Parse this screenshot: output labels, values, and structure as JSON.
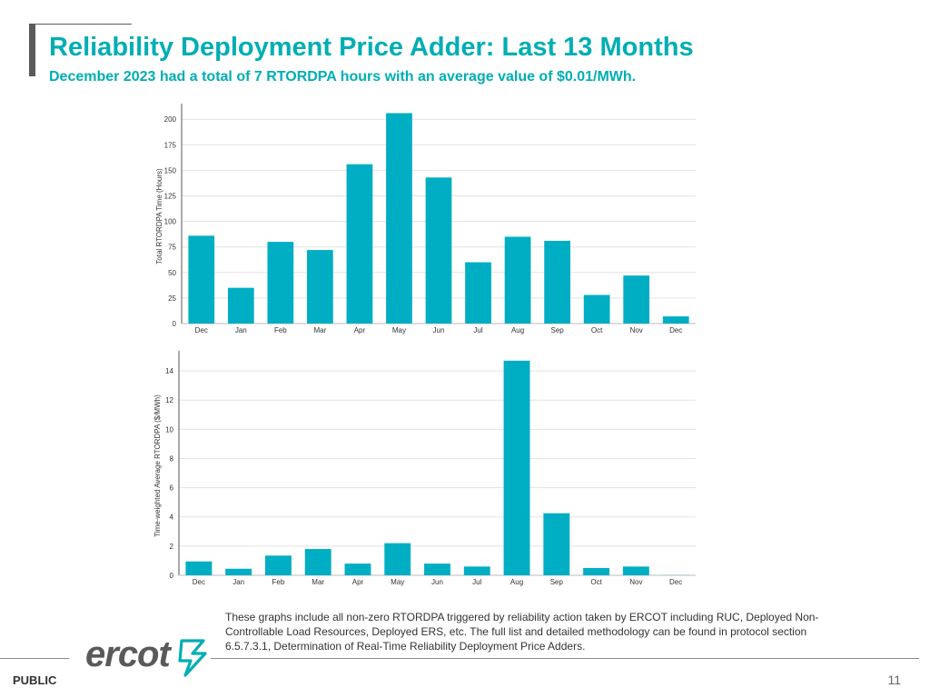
{
  "header": {
    "title": "Reliability Deployment Price Adder: Last 13 Months",
    "subtitle": "December 2023 had a total of 7 RTORDPA hours with an average value of $0.01/MWh."
  },
  "colors": {
    "accent": "#00aeb3",
    "bar": "#00aec3",
    "grid": "#e3e3e3"
  },
  "chart_data": [
    {
      "type": "bar",
      "categories": [
        "Dec",
        "Jan",
        "Feb",
        "Mar",
        "Apr",
        "May",
        "Jun",
        "Jul",
        "Aug",
        "Sep",
        "Oct",
        "Nov",
        "Dec"
      ],
      "values": [
        86,
        35,
        80,
        72,
        156,
        206,
        143,
        60,
        85,
        81,
        28,
        47,
        7
      ],
      "title": "",
      "xlabel": "",
      "ylabel": "Total RTORDPA Time (Hours)",
      "ylim": [
        0,
        210
      ],
      "yticks": [
        0,
        25,
        50,
        75,
        100,
        125,
        150,
        175,
        200
      ],
      "grid": true
    },
    {
      "type": "bar",
      "categories": [
        "Dec",
        "Jan",
        "Feb",
        "Mar",
        "Apr",
        "May",
        "Jun",
        "Jul",
        "Aug",
        "Sep",
        "Oct",
        "Nov",
        "Dec"
      ],
      "values": [
        0.95,
        0.45,
        1.35,
        1.8,
        0.8,
        2.2,
        0.8,
        0.6,
        14.7,
        4.25,
        0.5,
        0.6,
        0.01
      ],
      "title": "",
      "xlabel": "",
      "ylabel": "Time-weighted Average RTORDPA ($/MWh)",
      "ylim": [
        0,
        15
      ],
      "yticks": [
        0,
        2,
        4,
        6,
        8,
        10,
        12,
        14
      ],
      "grid": true
    }
  ],
  "footnote": "These graphs include all non-zero RTORDPA triggered by reliability action taken by ERCOT including RUC, Deployed Non-Controllable Load Resources, Deployed ERS, etc. The full list and detailed methodology can be found in protocol section 6.5.7.3.1, Determination of Real-Time Reliability Deployment Price Adders.",
  "footer": {
    "logo_text": "ercot",
    "logo_icon": "texas-bolt-icon",
    "classification": "PUBLIC",
    "page_number": "11"
  }
}
